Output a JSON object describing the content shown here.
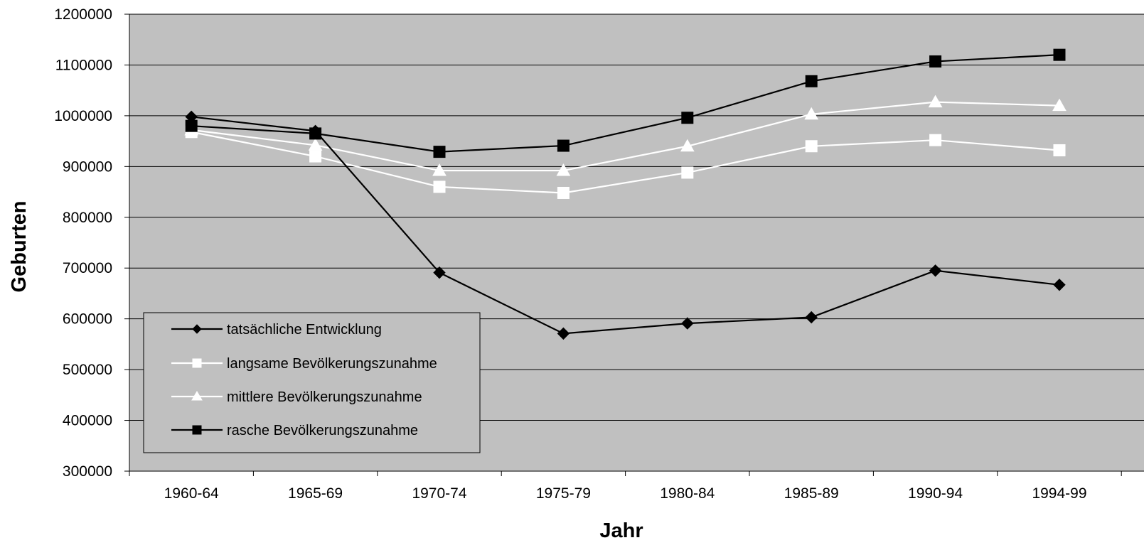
{
  "chart_data": {
    "type": "line",
    "title": "",
    "xlabel": "Jahr",
    "ylabel": "Geburten",
    "categories": [
      "1960-64",
      "1965-69",
      "1970-74",
      "1975-79",
      "1980-84",
      "1985-89",
      "1990-94",
      "1994-99"
    ],
    "ylim": [
      300000,
      1200000
    ],
    "yticks": [
      "300000",
      "400000",
      "500000",
      "600000",
      "700000",
      "800000",
      "900000",
      "1000000",
      "1100000",
      "1200000"
    ],
    "grid": "horizontal",
    "legend_position": "bottom-left",
    "plot_background": "#c0c0c0",
    "series": [
      {
        "name": "tatsächliche Entwicklung",
        "color": "#000000",
        "marker": "diamond",
        "values": [
          998000,
          970000,
          691000,
          571000,
          591000,
          603000,
          695000,
          667000
        ]
      },
      {
        "name": "langsame Bevölkerungszunahme",
        "color": "#ffffff",
        "marker": "square",
        "values": [
          968000,
          920000,
          860000,
          848000,
          888000,
          940000,
          952000,
          932000
        ]
      },
      {
        "name": "mittlere Bevölkerungszunahme",
        "color": "#ffffff",
        "marker": "triangle",
        "values": [
          972000,
          942000,
          892000,
          892000,
          940000,
          1003000,
          1027000,
          1020000
        ]
      },
      {
        "name": "rasche Bevölkerungszunahme",
        "color": "#000000",
        "marker": "square",
        "values": [
          980000,
          965000,
          929000,
          941000,
          996000,
          1068000,
          1107000,
          1120000
        ]
      }
    ]
  }
}
